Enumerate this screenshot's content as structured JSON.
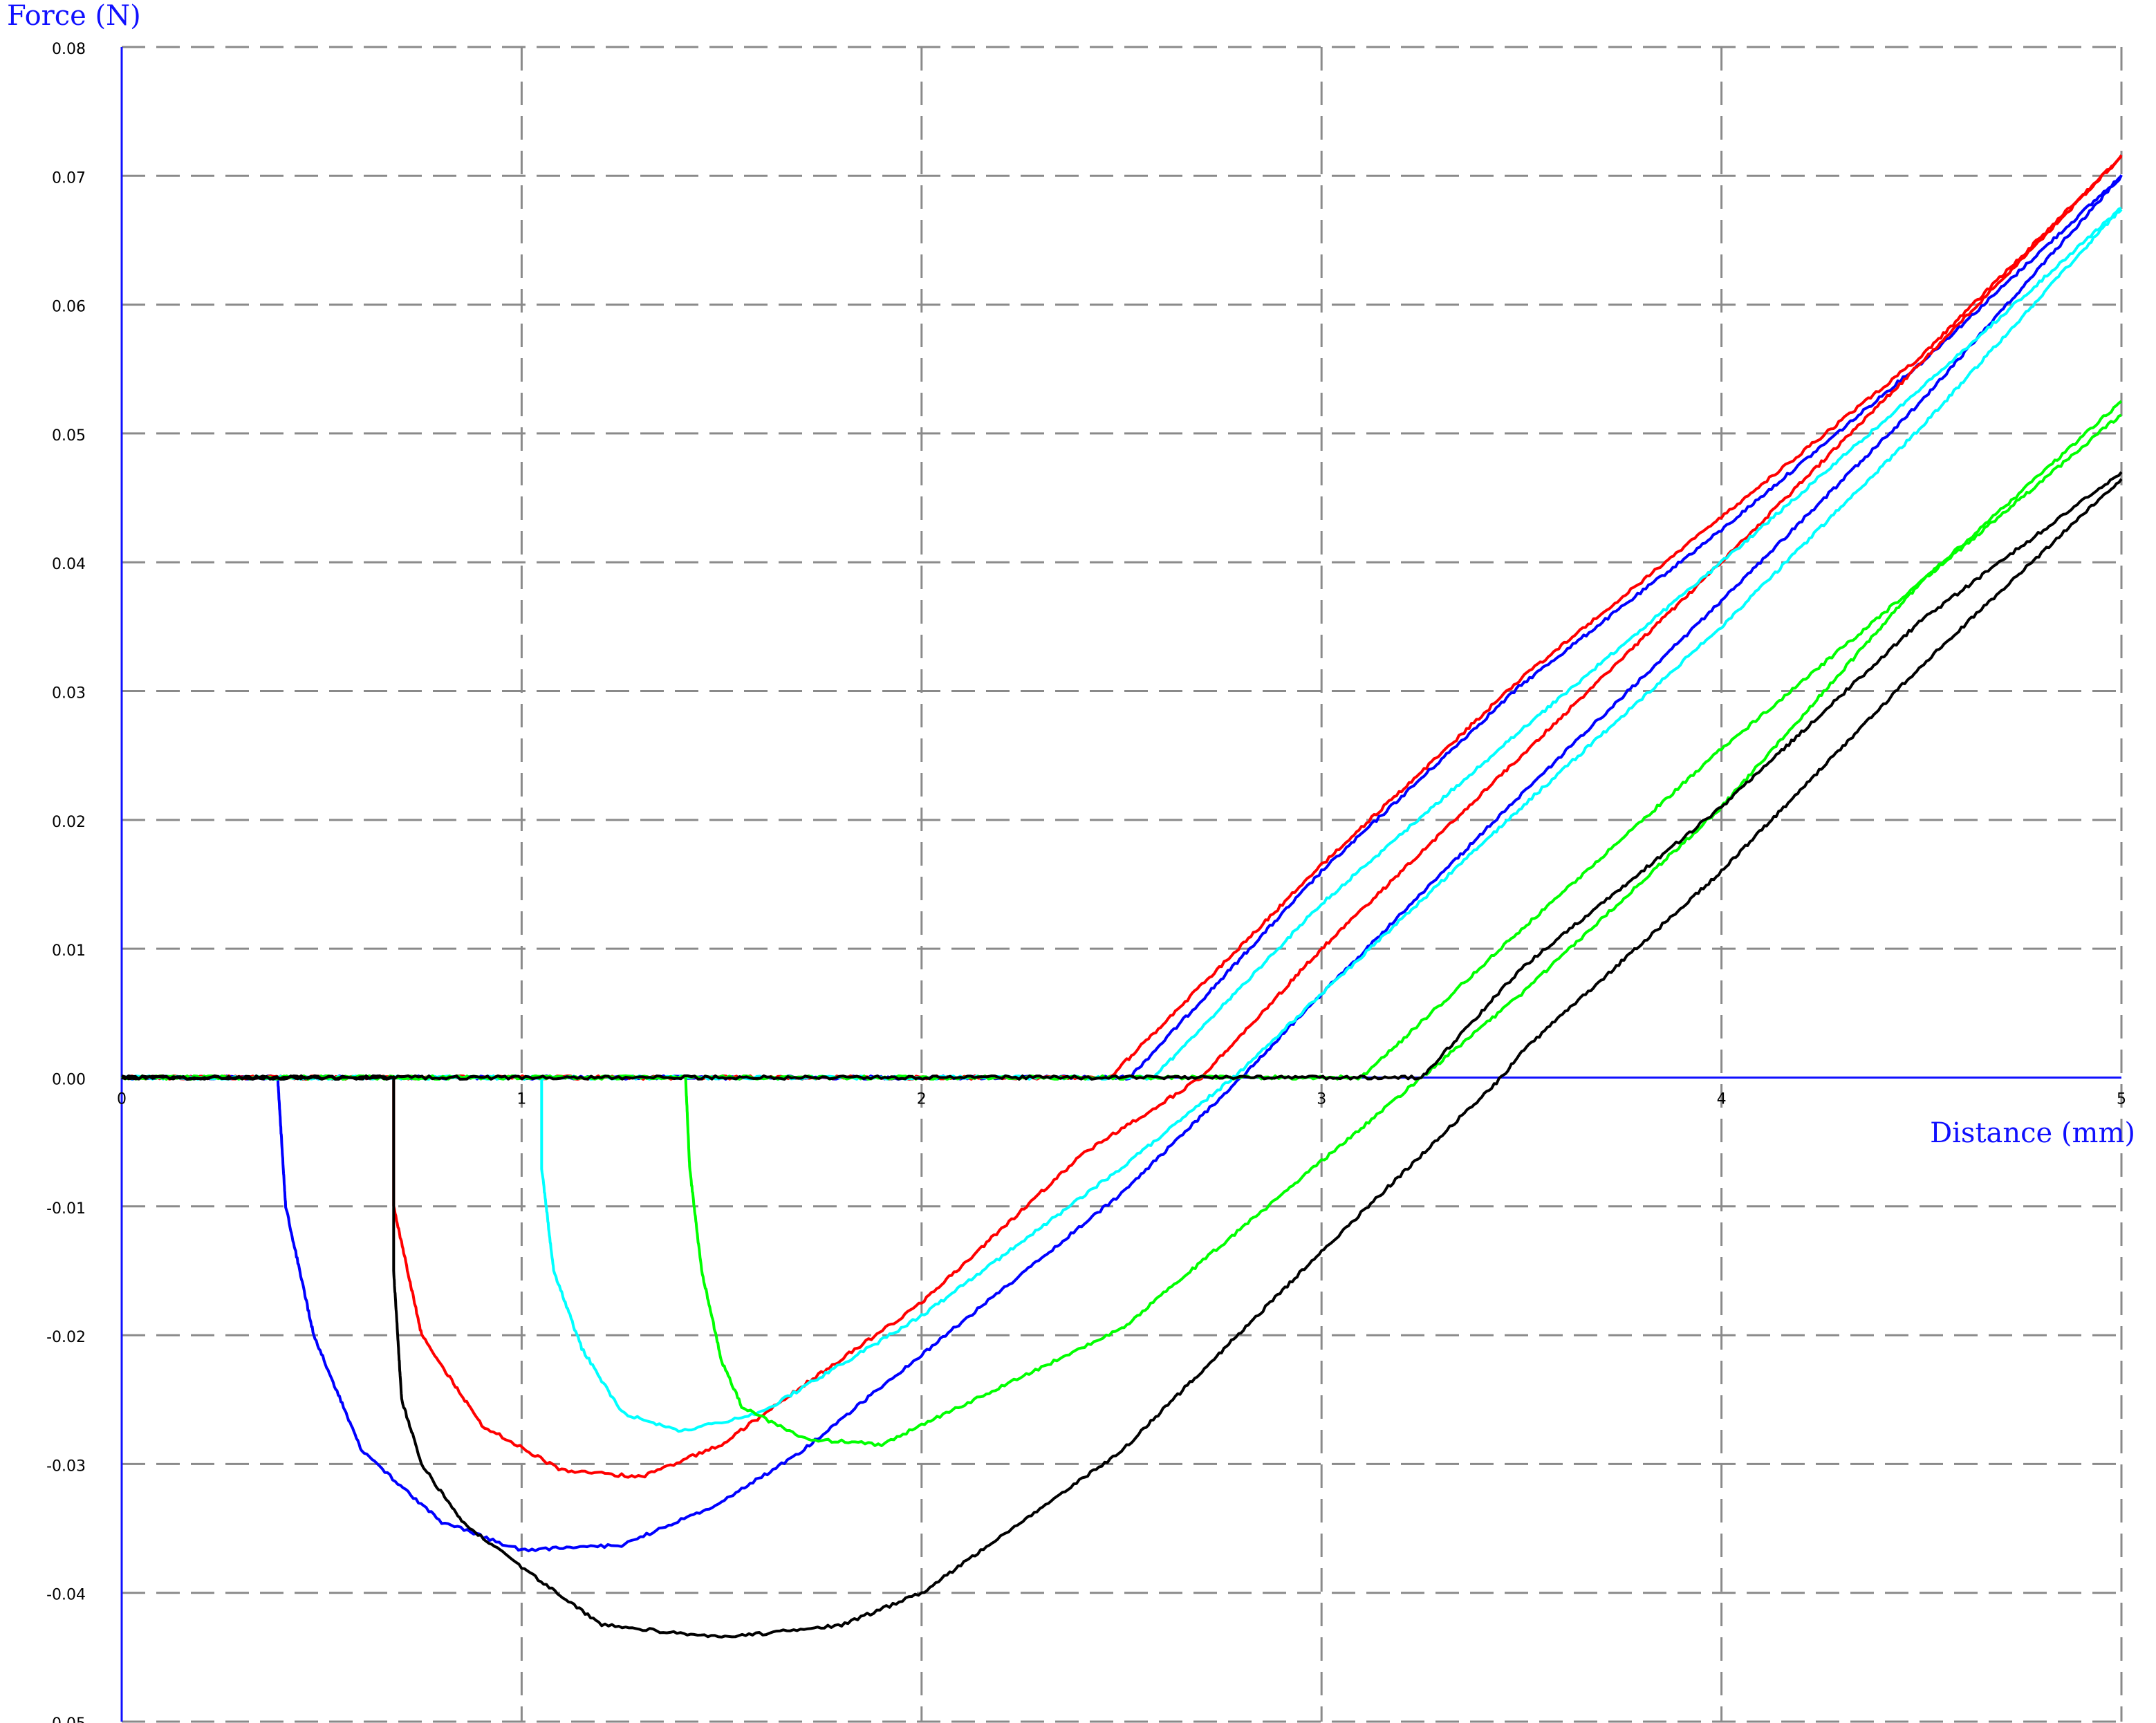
{
  "chart_data": {
    "type": "line",
    "title": "",
    "xlabel": "Distance (mm)",
    "ylabel": "Force (N)",
    "xlim": [
      0,
      5
    ],
    "ylim": [
      -0.05,
      0.08
    ],
    "xticks": [
      "0",
      "1",
      "2",
      "3",
      "4",
      "5"
    ],
    "yticks": [
      "0.08",
      "0.07",
      "0.06",
      "0.05",
      "0.04",
      "0.03",
      "0.02",
      "0.01",
      "0.00",
      "-0.01",
      "-0.02",
      "-0.03",
      "-0.04",
      "-0.05"
    ],
    "grid": true,
    "grid_style": "dashed",
    "legend": "none",
    "axis_color": "#1010ff",
    "series": [
      {
        "color": "#0000ff",
        "approach": [
          [
            0,
            0
          ],
          [
            2.52,
            0
          ],
          [
            3.0,
            0.016
          ],
          [
            3.5,
            0.0305
          ],
          [
            4.0,
            0.0425
          ],
          [
            4.5,
            0.0555
          ],
          [
            5.0,
            0.07
          ]
        ],
        "retract": [
          [
            5.0,
            0.07
          ],
          [
            4.5,
            0.0525
          ],
          [
            4.0,
            0.037
          ],
          [
            3.5,
            0.022
          ],
          [
            3.0,
            0.0065
          ],
          [
            2.8,
            0.0
          ],
          [
            2.5,
            -0.009
          ],
          [
            2.0,
            -0.0215
          ],
          [
            1.7,
            -0.029
          ],
          [
            1.5,
            -0.033
          ],
          [
            1.25,
            -0.0363
          ],
          [
            1.0,
            -0.0367
          ],
          [
            0.8,
            -0.0345
          ],
          [
            0.6,
            -0.029
          ],
          [
            0.48,
            -0.02
          ],
          [
            0.41,
            -0.01
          ],
          [
            0.39,
            0.0
          ],
          [
            0.0,
            0.0
          ]
        ]
      },
      {
        "color": "#ff0000",
        "approach": [
          [
            0,
            0
          ],
          [
            2.47,
            0
          ],
          [
            3.0,
            0.0165
          ],
          [
            3.5,
            0.031
          ],
          [
            4.0,
            0.0435
          ],
          [
            4.5,
            0.056
          ],
          [
            5.0,
            0.0715
          ]
        ],
        "retract": [
          [
            5.0,
            0.0715
          ],
          [
            4.5,
            0.0555
          ],
          [
            4.0,
            0.04
          ],
          [
            3.5,
            0.025
          ],
          [
            3.0,
            0.01
          ],
          [
            2.7,
            0.0
          ],
          [
            2.4,
            -0.006
          ],
          [
            2.0,
            -0.0175
          ],
          [
            1.7,
            -0.024
          ],
          [
            1.5,
            -0.0285
          ],
          [
            1.3,
            -0.031
          ],
          [
            1.1,
            -0.0305
          ],
          [
            0.9,
            -0.027
          ],
          [
            0.75,
            -0.02
          ],
          [
            0.68,
            -0.01
          ],
          [
            0.68,
            0.0
          ],
          [
            0.0,
            0.0
          ]
        ]
      },
      {
        "color": "#00ffff",
        "approach": [
          [
            0,
            0
          ],
          [
            2.58,
            0
          ],
          [
            3.0,
            0.0135
          ],
          [
            3.5,
            0.027
          ],
          [
            4.0,
            0.04
          ],
          [
            4.5,
            0.0535
          ],
          [
            5.0,
            0.0675
          ]
        ],
        "retract": [
          [
            5.0,
            0.0675
          ],
          [
            4.5,
            0.0505
          ],
          [
            4.0,
            0.035
          ],
          [
            3.5,
            0.021
          ],
          [
            3.0,
            0.0065
          ],
          [
            2.78,
            0.0
          ],
          [
            2.5,
            -0.007
          ],
          [
            2.0,
            -0.0185
          ],
          [
            1.6,
            -0.026
          ],
          [
            1.4,
            -0.0275
          ],
          [
            1.25,
            -0.026
          ],
          [
            1.15,
            -0.021
          ],
          [
            1.08,
            -0.015
          ],
          [
            1.05,
            -0.007
          ],
          [
            1.05,
            0.0
          ],
          [
            0.0,
            0.0
          ]
        ]
      },
      {
        "color": "#00ff00",
        "approach": [
          [
            0,
            0
          ],
          [
            3.1,
            0
          ],
          [
            3.5,
            0.0115
          ],
          [
            4.0,
            0.0255
          ],
          [
            4.5,
            0.0385
          ],
          [
            5.0,
            0.0525
          ]
        ],
        "retract": [
          [
            5.0,
            0.0515
          ],
          [
            4.5,
            0.0385
          ],
          [
            4.0,
            0.021
          ],
          [
            3.5,
            0.0065
          ],
          [
            3.25,
            0.0
          ],
          [
            3.0,
            -0.0065
          ],
          [
            2.5,
            -0.0195
          ],
          [
            2.0,
            -0.027
          ],
          [
            1.9,
            -0.0285
          ],
          [
            1.7,
            -0.028
          ],
          [
            1.55,
            -0.0255
          ],
          [
            1.5,
            -0.022
          ],
          [
            1.45,
            -0.015
          ],
          [
            1.42,
            -0.007
          ],
          [
            1.41,
            0.0
          ],
          [
            0.0,
            0.0
          ]
        ]
      },
      {
        "color": "#000000",
        "approach": [
          [
            0,
            0
          ],
          [
            3.15,
            0
          ],
          [
            3.25,
            0.0
          ],
          [
            3.5,
            0.0085
          ],
          [
            4.0,
            0.021
          ],
          [
            4.5,
            0.0355
          ],
          [
            5.0,
            0.047
          ]
        ],
        "retract": [
          [
            5.0,
            0.0465
          ],
          [
            4.5,
            0.032
          ],
          [
            4.0,
            0.016
          ],
          [
            3.5,
            0.002
          ],
          [
            3.45,
            0.0
          ],
          [
            3.0,
            -0.0135
          ],
          [
            2.5,
            -0.029
          ],
          [
            2.0,
            -0.04
          ],
          [
            1.8,
            -0.0425
          ],
          [
            1.5,
            -0.0435
          ],
          [
            1.2,
            -0.0425
          ],
          [
            1.0,
            -0.038
          ],
          [
            0.85,
            -0.0345
          ],
          [
            0.75,
            -0.03
          ],
          [
            0.7,
            -0.025
          ],
          [
            0.68,
            -0.015
          ],
          [
            0.68,
            -0.003
          ],
          [
            0.68,
            0.0
          ],
          [
            0.0,
            0.0
          ]
        ]
      }
    ]
  }
}
